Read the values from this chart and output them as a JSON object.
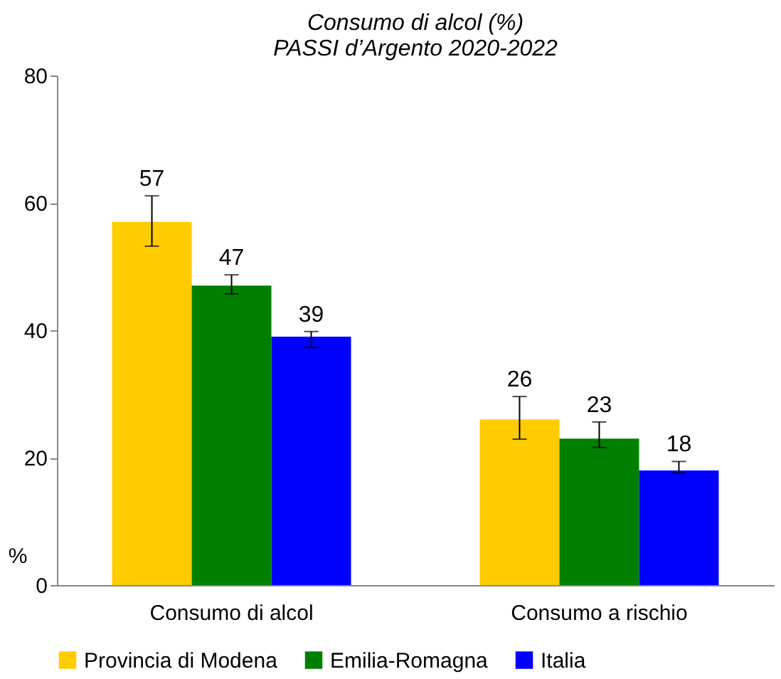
{
  "chart_data": {
    "type": "bar",
    "title": [
      "Consumo di alcol (%)",
      "PASSI d’Argento 2020-2022"
    ],
    "ylabel": "%",
    "categories": [
      "Consumo di alcol",
      "Consumo a rischio"
    ],
    "series": [
      {
        "name": "Provincia di Modena",
        "color": "#ffcc00",
        "values": [
          57,
          26
        ],
        "errors": [
          [
            53.2,
            61.1
          ],
          [
            22.9,
            29.6
          ]
        ]
      },
      {
        "name": "Emilia-Romagna",
        "color": "#008000",
        "values": [
          47,
          23
        ],
        "errors": [
          [
            45.7,
            48.7
          ],
          [
            21.6,
            25.6
          ]
        ]
      },
      {
        "name": "Italia",
        "color": "#0000ff",
        "values": [
          39,
          18
        ],
        "errors": [
          [
            37.3,
            39.8
          ],
          [
            17.6,
            19.4
          ]
        ]
      }
    ],
    "ylim": [
      0,
      80
    ],
    "yticks": [
      0,
      20,
      40,
      60,
      80
    ],
    "data_labels": true,
    "grid": false,
    "legend": "bottom"
  }
}
